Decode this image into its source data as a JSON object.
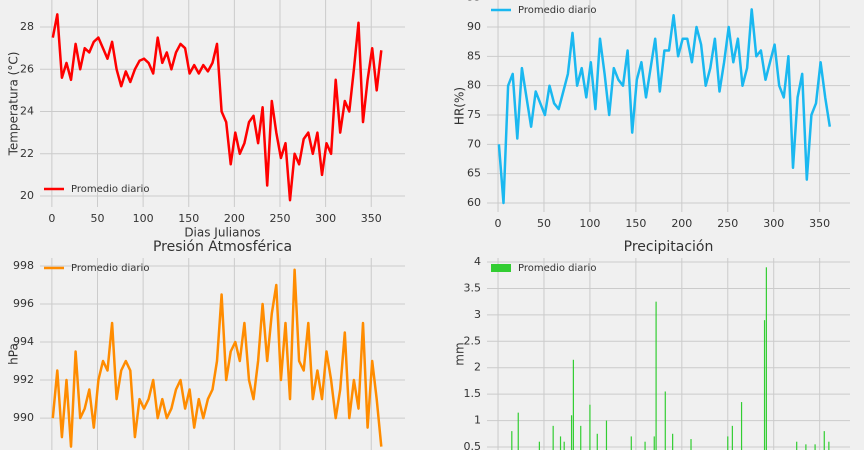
{
  "chart_data": [
    {
      "type": "line",
      "ylabel": "Temperatura (°C)",
      "xlabel": "Dias Julianos",
      "legend": "lower left",
      "grid": true,
      "xlim": [
        -13,
        387
      ],
      "ylim": [
        19.48,
        29.28
      ],
      "xticks": [
        0,
        50,
        100,
        150,
        200,
        250,
        300,
        350
      ],
      "yticks": [
        20,
        22,
        24,
        26,
        28
      ],
      "x": [
        1,
        6,
        11,
        16,
        21,
        26,
        31,
        36,
        41,
        46,
        51,
        56,
        61,
        66,
        71,
        76,
        81,
        86,
        91,
        96,
        101,
        106,
        111,
        116,
        121,
        126,
        131,
        136,
        141,
        146,
        151,
        156,
        161,
        166,
        171,
        176,
        181,
        186,
        191,
        196,
        201,
        206,
        211,
        216,
        221,
        226,
        231,
        236,
        241,
        246,
        251,
        256,
        261,
        266,
        271,
        276,
        281,
        286,
        291,
        296,
        301,
        306,
        311,
        316,
        321,
        326,
        331,
        336,
        341,
        346,
        351,
        356,
        361
      ],
      "series": [
        {
          "name": "Promedio diario",
          "color": "#ff0000",
          "values": [
            27.5,
            28.6,
            25.6,
            26.3,
            25.5,
            27.2,
            26.0,
            27.0,
            26.8,
            27.3,
            27.5,
            27.0,
            26.5,
            27.3,
            26.0,
            25.2,
            25.9,
            25.4,
            26.0,
            26.4,
            26.5,
            26.3,
            25.8,
            27.5,
            26.3,
            26.8,
            26.0,
            26.8,
            27.2,
            27.0,
            25.8,
            26.2,
            25.8,
            26.2,
            25.9,
            26.3,
            27.2,
            24.0,
            23.5,
            21.5,
            23.0,
            22.0,
            22.5,
            23.5,
            23.8,
            22.5,
            24.2,
            20.5,
            24.5,
            23.0,
            21.8,
            22.5,
            19.8,
            22.0,
            21.5,
            22.7,
            23.0,
            22.0,
            23.0,
            21.0,
            22.5,
            22.0,
            25.5,
            23.0,
            24.5,
            24.0,
            26.0,
            28.2,
            23.5,
            25.5,
            27.0,
            25.0,
            26.9
          ]
        }
      ]
    },
    {
      "type": "line",
      "ylabel": "HR(%)",
      "legend": "upper left",
      "grid": true,
      "xlim": [
        -12,
        383
      ],
      "ylim": [
        58.47,
        94.6
      ],
      "xticks": [
        0,
        50,
        100,
        150,
        200,
        250,
        300,
        350
      ],
      "yticks": [
        60,
        65,
        70,
        75,
        80,
        85,
        90,
        95
      ],
      "x": [
        1,
        6,
        11,
        16,
        21,
        26,
        31,
        36,
        41,
        46,
        51,
        56,
        61,
        66,
        71,
        76,
        81,
        86,
        91,
        96,
        101,
        106,
        111,
        116,
        121,
        126,
        131,
        136,
        141,
        146,
        151,
        156,
        161,
        166,
        171,
        176,
        181,
        186,
        191,
        196,
        201,
        206,
        211,
        216,
        221,
        226,
        231,
        236,
        241,
        246,
        251,
        256,
        261,
        266,
        271,
        276,
        281,
        286,
        291,
        296,
        301,
        306,
        311,
        316,
        321,
        326,
        331,
        336,
        341,
        346,
        351,
        356,
        361
      ],
      "series": [
        {
          "name": "Promedio diario",
          "color": "#1ab8f0",
          "values": [
            70,
            60,
            80,
            82,
            71,
            83,
            78,
            73,
            79,
            77,
            75,
            80,
            77,
            76,
            79,
            82,
            89,
            80,
            83,
            78,
            84,
            76,
            88,
            82,
            75,
            83,
            81,
            80,
            86,
            72,
            81,
            84,
            78,
            83,
            88,
            79,
            86,
            86,
            92,
            85,
            88,
            88,
            84,
            90,
            87,
            80,
            83,
            88,
            79,
            84,
            90,
            84,
            88,
            80,
            83,
            93,
            85,
            86,
            81,
            84,
            87,
            80,
            78,
            85,
            66,
            78,
            82,
            64,
            75,
            77,
            84,
            78,
            73
          ]
        }
      ]
    },
    {
      "type": "line",
      "title": "Presión Atmosférica",
      "ylabel": "hPa",
      "legend": "upper left",
      "grid": true,
      "xlim": [
        -13,
        387
      ],
      "ylim": [
        988.32,
        998.42
      ],
      "xticks": [
        0,
        50,
        100,
        150,
        200,
        250,
        300,
        350
      ],
      "yticks": [
        990,
        992,
        994,
        996,
        998
      ],
      "x": [
        1,
        6,
        11,
        16,
        21,
        26,
        31,
        36,
        41,
        46,
        51,
        56,
        61,
        66,
        71,
        76,
        81,
        86,
        91,
        96,
        101,
        106,
        111,
        116,
        121,
        126,
        131,
        136,
        141,
        146,
        151,
        156,
        161,
        166,
        171,
        176,
        181,
        186,
        191,
        196,
        201,
        206,
        211,
        216,
        221,
        226,
        231,
        236,
        241,
        246,
        251,
        256,
        261,
        266,
        271,
        276,
        281,
        286,
        291,
        296,
        301,
        306,
        311,
        316,
        321,
        326,
        331,
        336,
        341,
        346,
        351,
        356,
        361
      ],
      "series": [
        {
          "name": "Promedio diario",
          "color": "#ff8c00",
          "values": [
            990,
            992.5,
            989,
            992,
            988.5,
            993.5,
            990,
            990.5,
            991.5,
            989.5,
            992,
            993,
            992.5,
            995,
            991,
            992.5,
            993,
            992.5,
            989,
            991,
            990.5,
            991,
            992,
            990,
            991,
            990,
            990.5,
            991.5,
            992,
            990.5,
            991.5,
            989.5,
            991,
            990,
            991,
            991.5,
            993,
            996.5,
            992,
            993.5,
            994,
            993,
            995,
            992,
            991,
            993,
            996,
            993,
            995.5,
            997,
            992,
            995,
            991,
            997.8,
            993,
            992.5,
            995,
            991,
            992.5,
            991,
            993.5,
            992,
            990,
            991.5,
            994.5,
            990,
            992,
            990.5,
            995,
            989.5,
            993,
            991,
            988.5
          ]
        }
      ]
    },
    {
      "type": "bar",
      "title": "Precipitación",
      "ylabel": "mm",
      "legend": "upper left",
      "grid": true,
      "xlim": [
        -12,
        383
      ],
      "ylim": [
        0.443,
        4.076
      ],
      "xticks": [
        0,
        50,
        100,
        150,
        200,
        250,
        300,
        350
      ],
      "yticks": [
        0.5,
        1.0,
        1.5,
        2.0,
        2.5,
        3.0,
        3.5,
        4.0
      ],
      "x": [
        15,
        22,
        45,
        60,
        68,
        72,
        80,
        82,
        90,
        100,
        108,
        118,
        145,
        160,
        170,
        172,
        182,
        190,
        210,
        250,
        255,
        265,
        290,
        292,
        325,
        335,
        345,
        355,
        360
      ],
      "series": [
        {
          "name": "Promedio diario",
          "color": "#32cd32",
          "values": [
            0.8,
            1.15,
            0.6,
            0.9,
            0.7,
            0.6,
            1.1,
            2.15,
            0.9,
            1.3,
            0.75,
            1.0,
            0.7,
            0.6,
            0.7,
            3.25,
            1.55,
            0.75,
            0.65,
            0.7,
            0.9,
            1.35,
            2.9,
            3.9,
            0.6,
            0.55,
            0.55,
            0.8,
            0.6
          ]
        }
      ]
    }
  ]
}
